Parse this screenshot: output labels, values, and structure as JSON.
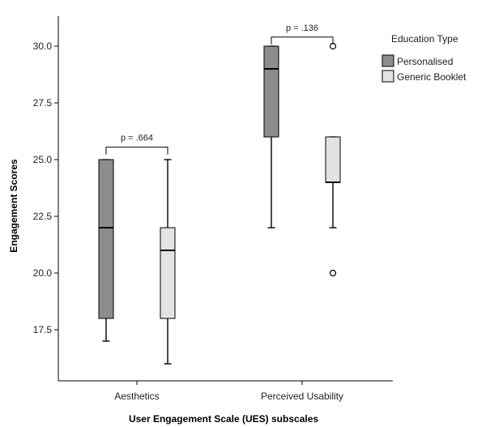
{
  "chart_data": {
    "type": "boxplot",
    "xlabel": "User Engagement Scale (UES) subscales",
    "ylabel": "Engagement Scores",
    "ylim": [
      15.8,
      31.4
    ],
    "yticks": [
      "17.5",
      "20.0",
      "22.5",
      "25.0",
      "27.5",
      "30.0"
    ],
    "categories": [
      "Aesthetics",
      "Perceived Usability"
    ],
    "legend": {
      "title": "Education Type",
      "position": "top-right"
    },
    "series": [
      {
        "name": "Personalised",
        "color": "#8c8c8c",
        "boxes": [
          {
            "whisker_low": 17,
            "q1": 18,
            "median": 22,
            "q3": 25,
            "whisker_high": 25,
            "outliers": []
          },
          {
            "whisker_low": 22,
            "q1": 26,
            "median": 29,
            "q3": 30,
            "whisker_high": 30,
            "outliers": []
          }
        ]
      },
      {
        "name": "Generic Booklet",
        "color": "#e2e2e2",
        "boxes": [
          {
            "whisker_low": 16,
            "q1": 18,
            "median": 21,
            "q3": 22,
            "whisker_high": 25,
            "outliers": []
          },
          {
            "whisker_low": 22,
            "q1": 24,
            "median": 24,
            "q3": 26,
            "whisker_high": 26,
            "outliers": [
              20,
              30
            ]
          }
        ]
      }
    ],
    "annotations": [
      {
        "text": "p = .664",
        "category": "Aesthetics",
        "bracket_top": 25.55
      },
      {
        "text": "p = .136",
        "category": "Perceived Usability",
        "bracket_top": 30.4
      }
    ]
  }
}
